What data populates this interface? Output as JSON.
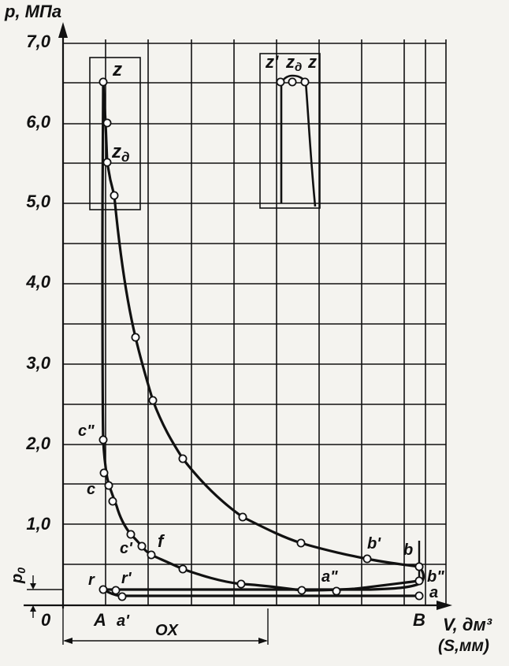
{
  "axis_labels": {
    "y_title": "p, МПа",
    "x_title_1": "V, дм³",
    "x_title_2": "(S,мм)",
    "origin": "0",
    "p0": "p",
    "p0_sub": "0"
  },
  "y_ticks": [
    "1,0",
    "2,0",
    "3,0",
    "4,0",
    "5,0",
    "6,0",
    "7,0"
  ],
  "segment_label": "OX",
  "point_labels": {
    "z_main": "z",
    "zd_main": "z",
    "zd_sub": "д",
    "inset_z1": "z'",
    "inset_zd": "z",
    "inset_zd_sub": "д",
    "inset_z": "z",
    "c2": "c\"",
    "c": "c",
    "c1": "c'",
    "f": "f",
    "r": "r",
    "r1": "r'",
    "A": "A",
    "a1": "a'",
    "B": "B",
    "a": "a",
    "b": "b",
    "b1": "b'",
    "b2": "b\"",
    "a2": "a\""
  }
}
